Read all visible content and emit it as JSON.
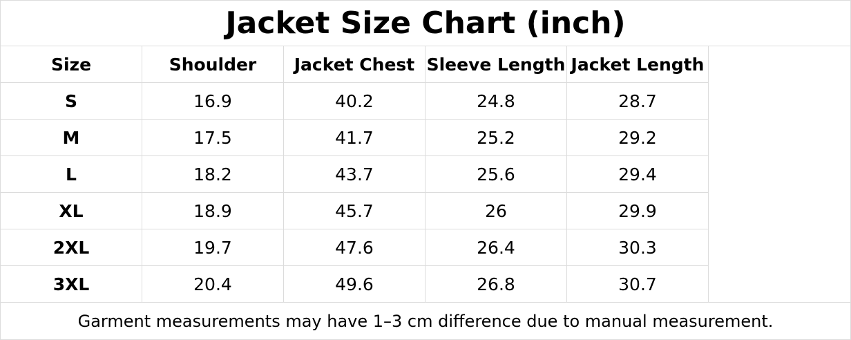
{
  "title": "Jacket Size Chart (inch)",
  "table": {
    "header": [
      "Size",
      "Shoulder",
      "Jacket Chest",
      "Sleeve Length",
      "Jacket Length"
    ],
    "rows": [
      [
        "S",
        "16.9",
        "40.2",
        "24.8",
        "28.7"
      ],
      [
        "M",
        "17.5",
        "41.7",
        "25.2",
        "29.2"
      ],
      [
        "L",
        "18.2",
        "43.7",
        "25.6",
        "29.4"
      ],
      [
        "XL",
        "18.9",
        "45.7",
        "26",
        "29.9"
      ],
      [
        "2XL",
        "19.7",
        "47.6",
        "26.4",
        "30.3"
      ],
      [
        "3XL",
        "20.4",
        "49.6",
        "26.8",
        "30.7"
      ]
    ]
  },
  "footnote": "Garment measurements may have 1–3 cm difference due to manual measurement."
}
